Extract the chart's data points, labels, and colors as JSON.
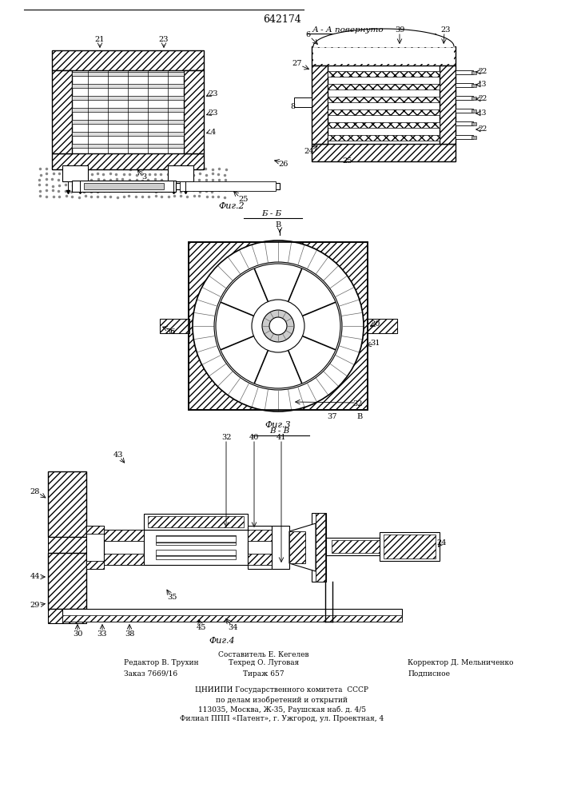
{
  "patent_number": "642174",
  "fig2_label": "Фиг.2",
  "fig3_label": "Фиг.3",
  "fig4_label": "Фиг.4",
  "section_aa": "А - А повернуто",
  "section_bb": "Б - Б",
  "section_vv": "В - В",
  "arrow_b": "В",
  "editor_line": "Редактор В. Трухин",
  "order_line": "Заказ 7669/16",
  "composer_line": "Составитель Е. Кегелев",
  "techred_line": "Техред О. Луговая",
  "tirazh_line": "Тираж 657",
  "corrector_line": "Корректор Д. Мельниченко",
  "podpisnoe_line": "Подписное",
  "tsniipи_line": "ЦНИИПИ Государственного комитета  СССР",
  "po_delam_line": "по делам изобретений и открытий",
  "address_line": "113035, Москва, Ж-35, Раушская наб. д. 4/5",
  "filial_line": "Филиал ППП «Патент», г. Ужгород, ул. Проектная, 4",
  "bg_color": "#ffffff"
}
